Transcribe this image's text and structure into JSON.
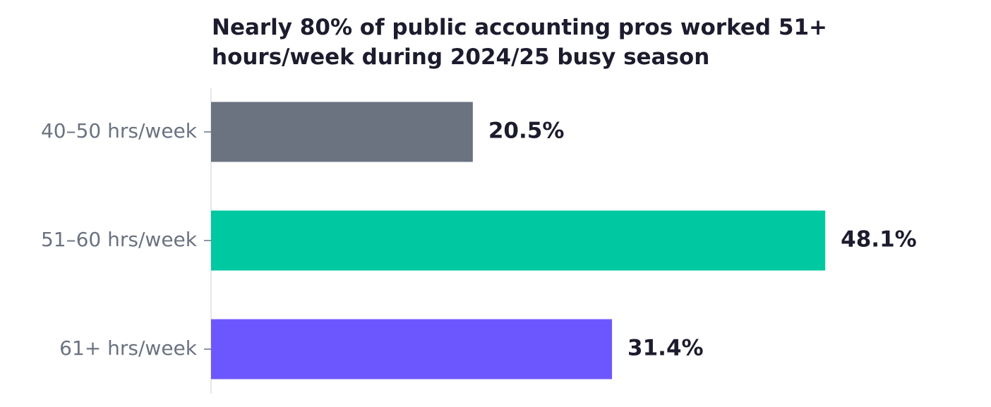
{
  "chart_data": {
    "type": "barh",
    "title": "Nearly 80% of public accounting pros worked 51+ hours/week during 2024/25 busy season",
    "categories": [
      "40–50 hrs/week",
      "51–60 hrs/week",
      "61+ hrs/week"
    ],
    "values": [
      20.5,
      48.1,
      31.4
    ],
    "value_labels": [
      "20.5%",
      "48.1%",
      "31.4%"
    ],
    "colors": [
      "#6b7280",
      "#00c8a0",
      "#6c57ff"
    ],
    "xlim": [
      0,
      55
    ]
  }
}
